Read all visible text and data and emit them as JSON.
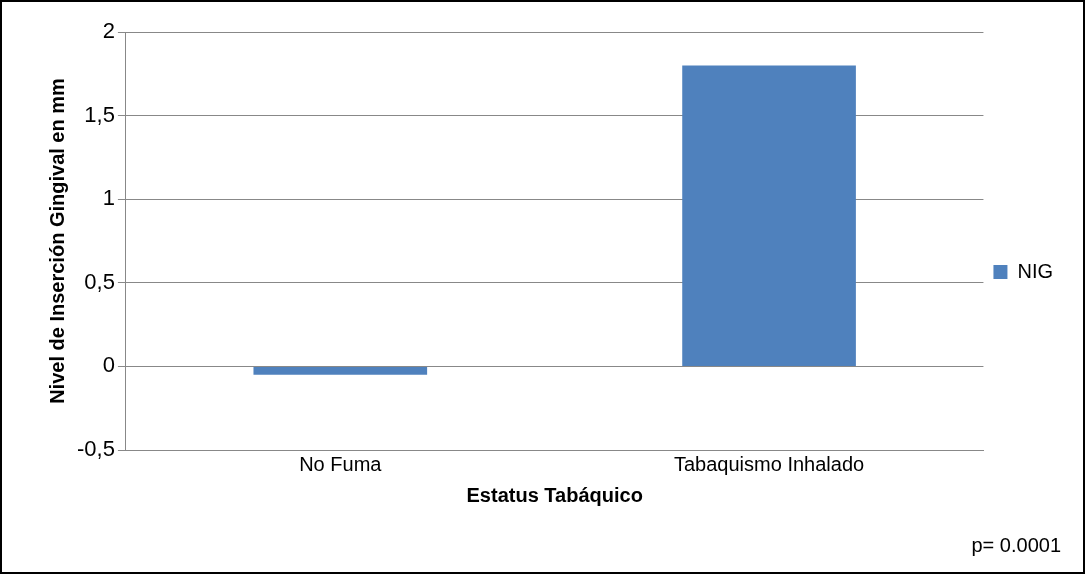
{
  "chart_data": {
    "type": "bar",
    "xlabel": "Estatus Tabáquico",
    "ylabel": "Nivel de Inserción Gingival en mm",
    "categories": [
      "No Fuma",
      "Tabaquismo Inhalado"
    ],
    "series": [
      {
        "name": "NIG",
        "color": "#4f81bd",
        "values": [
          -0.05,
          1.8
        ]
      }
    ],
    "ylim": [
      -0.5,
      2
    ],
    "yticks": [
      {
        "value": -0.5,
        "label": "-0,5"
      },
      0,
      {
        "value": 0.5,
        "label": "0,5"
      },
      1,
      {
        "value": 1.5,
        "label": "1,5"
      },
      2
    ],
    "grid": "y",
    "legend": "right",
    "annotations": [
      "p= 0.0001"
    ]
  }
}
